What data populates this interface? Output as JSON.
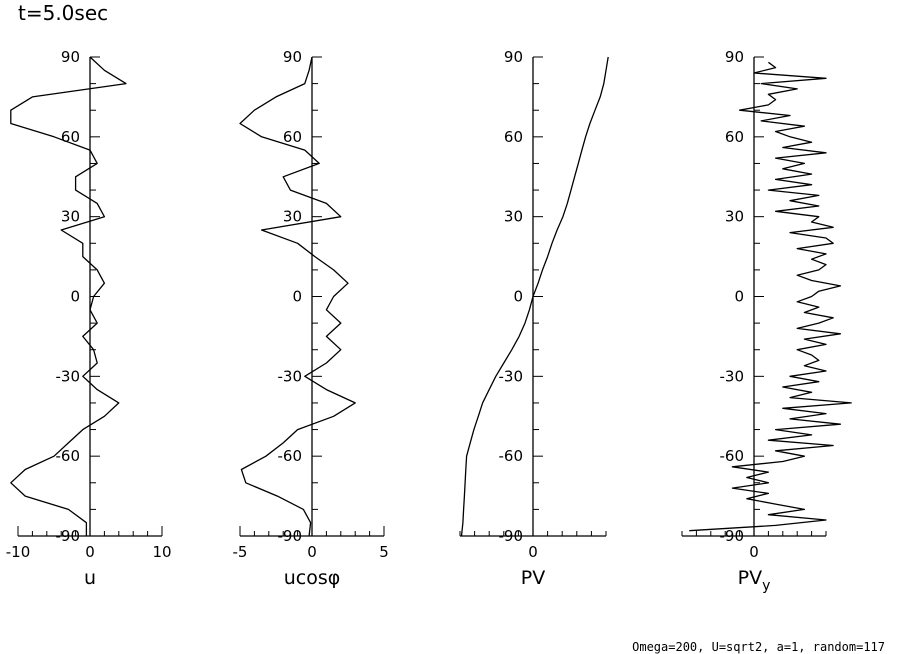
{
  "title": "t=5.0sec",
  "footer": "Omega=200, U=sqrt2, a=1, random=117",
  "chart_data": [
    {
      "type": "line",
      "xlabel": "u",
      "ylabel": "",
      "xlim": [
        -10,
        10
      ],
      "ylim": [
        -90,
        90
      ],
      "x_ticks": [
        "-10",
        "0",
        "10"
      ],
      "y_ticks": [
        "-90",
        "-60",
        "-30",
        "0",
        "30",
        "60",
        "90"
      ],
      "series": [
        {
          "lat": [
            -90,
            -85,
            -80,
            -75,
            -70,
            -65,
            -60,
            -55,
            -50,
            -45,
            -40,
            -35,
            -30,
            -25,
            -20,
            -15,
            -10,
            -5,
            0,
            5,
            10,
            15,
            20,
            25,
            30,
            35,
            40,
            45,
            50,
            55,
            60,
            65,
            70,
            75,
            80,
            85,
            90
          ],
          "values": [
            -0.5,
            -0.5,
            -3,
            -9,
            -11,
            -9,
            -5,
            -3,
            -1,
            2,
            4,
            1,
            -1,
            1,
            0.5,
            -1,
            1,
            0,
            0.5,
            2,
            1,
            -1,
            -1,
            -4,
            2,
            1,
            -2,
            -2,
            1,
            0,
            -5,
            -11,
            -11,
            -8,
            5,
            2,
            0
          ]
        }
      ]
    },
    {
      "type": "line",
      "xlabel": "ucosφ",
      "ylabel": "",
      "xlim": [
        -5,
        5
      ],
      "ylim": [
        -90,
        90
      ],
      "x_ticks": [
        "-5",
        "0",
        "5"
      ],
      "y_ticks": [
        "-90",
        "-60",
        "-30",
        "0",
        "30",
        "60",
        "90"
      ],
      "series": [
        {
          "lat": [
            -90,
            -85,
            -80,
            -75,
            -70,
            -65,
            -60,
            -55,
            -50,
            -45,
            -40,
            -35,
            -30,
            -25,
            -20,
            -15,
            -10,
            -5,
            0,
            5,
            10,
            15,
            20,
            25,
            30,
            35,
            40,
            45,
            50,
            55,
            60,
            65,
            70,
            75,
            80,
            85,
            90
          ],
          "values": [
            -0.2,
            -0.1,
            -0.6,
            -2.4,
            -4.6,
            -4.9,
            -3.2,
            -2.0,
            -1.0,
            1.5,
            3.0,
            1.0,
            -0.5,
            1.0,
            2.0,
            1.0,
            2.0,
            1.0,
            1.5,
            2.5,
            1.5,
            0.2,
            -1.0,
            -3.5,
            2.0,
            1.0,
            -1.5,
            -2.0,
            0.5,
            -0.5,
            -3.5,
            -5.0,
            -4.0,
            -2.5,
            -0.5,
            -0.2,
            0
          ]
        }
      ]
    },
    {
      "type": "line",
      "xlabel": "PV",
      "ylabel": "",
      "xlim": [
        -1,
        1
      ],
      "ylim": [
        -90,
        90
      ],
      "x_ticks": [
        "0"
      ],
      "y_ticks": [
        "-90",
        "-60",
        "-30",
        "0",
        "30",
        "60",
        "90"
      ],
      "series": [
        {
          "lat": [
            -90,
            -85,
            -80,
            -75,
            -70,
            -65,
            -60,
            -55,
            -50,
            -45,
            -40,
            -35,
            -30,
            -25,
            -20,
            -15,
            -10,
            -5,
            0,
            5,
            10,
            15,
            20,
            25,
            30,
            35,
            40,
            45,
            50,
            55,
            60,
            65,
            70,
            75,
            80,
            85,
            90
          ],
          "values": [
            -0.98,
            -0.96,
            -0.95,
            -0.94,
            -0.93,
            -0.92,
            -0.91,
            -0.86,
            -0.81,
            -0.75,
            -0.69,
            -0.6,
            -0.51,
            -0.4,
            -0.29,
            -0.19,
            -0.11,
            -0.05,
            0,
            0.07,
            0.13,
            0.2,
            0.26,
            0.33,
            0.41,
            0.47,
            0.52,
            0.57,
            0.62,
            0.67,
            0.72,
            0.78,
            0.85,
            0.92,
            0.97,
            1.0,
            1.03
          ]
        }
      ]
    },
    {
      "type": "line",
      "xlabel": "PV",
      "xlabel_sub": "y",
      "ylabel": "",
      "xlim": [
        -1,
        1
      ],
      "ylim": [
        -90,
        90
      ],
      "x_ticks": [
        "0"
      ],
      "y_ticks": [
        "-90",
        "-60",
        "-30",
        "0",
        "30",
        "60",
        "90"
      ],
      "series": [
        {
          "lat": [
            -88,
            -86,
            -84,
            -82,
            -80,
            -78,
            -76,
            -74,
            -72,
            -70,
            -68,
            -66,
            -64,
            -62,
            -60,
            -58,
            -56,
            -54,
            -52,
            -50,
            -48,
            -46,
            -44,
            -42,
            -40,
            -38,
            -36,
            -34,
            -32,
            -30,
            -28,
            -26,
            -24,
            -22,
            -20,
            -18,
            -16,
            -14,
            -12,
            -10,
            -8,
            -6,
            -4,
            -2,
            0,
            2,
            4,
            6,
            8,
            10,
            12,
            14,
            16,
            18,
            20,
            22,
            24,
            26,
            28,
            30,
            32,
            34,
            36,
            38,
            40,
            42,
            44,
            46,
            48,
            50,
            52,
            54,
            56,
            58,
            60,
            62,
            64,
            66,
            68,
            70,
            72,
            74,
            76,
            78,
            80,
            82,
            84,
            86,
            88
          ],
          "values": [
            -0.9,
            0.3,
            1.0,
            0.2,
            0.7,
            0.3,
            -0.1,
            0.2,
            -0.3,
            0.2,
            -0.1,
            0.2,
            -0.3,
            0.4,
            0.7,
            0.3,
            1.1,
            0.2,
            0.8,
            0.3,
            1.2,
            0.5,
            1.0,
            0.4,
            1.35,
            0.5,
            0.8,
            0.4,
            0.9,
            0.5,
            1.0,
            0.7,
            0.9,
            0.8,
            0.6,
            1.0,
            0.7,
            1.2,
            0.6,
            0.9,
            1.1,
            0.7,
            0.9,
            0.6,
            0.8,
            0.9,
            1.2,
            0.8,
            0.6,
            0.9,
            1.0,
            0.8,
            1.0,
            0.6,
            1.1,
            1.0,
            0.5,
            1.1,
            0.8,
            0.9,
            0.3,
            0.9,
            0.5,
            0.9,
            0.2,
            0.8,
            0.3,
            0.8,
            0.4,
            0.7,
            0.3,
            1.0,
            0.4,
            0.8,
            0.5,
            0.3,
            0.7,
            0.1,
            0.5,
            -0.2,
            0.2,
            0.3,
            0.2,
            0.6,
            0.1,
            1.0,
            0.0,
            0.3,
            0.2
          ]
        }
      ]
    }
  ]
}
